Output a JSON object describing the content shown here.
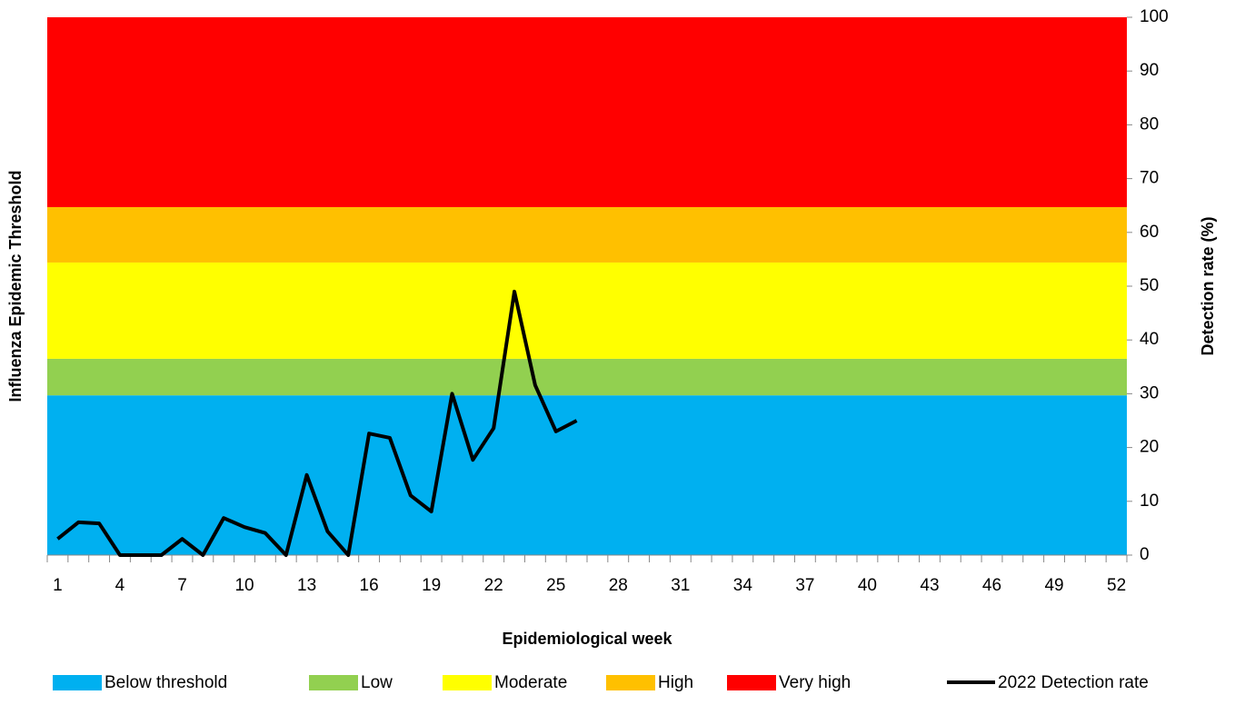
{
  "chart_data": {
    "type": "line",
    "x_label": "Epidemiological week",
    "y_label": "Influenza Epidemic Threshold",
    "y2_label": "Detection rate (%)",
    "categories": [
      1,
      null,
      null,
      4,
      null,
      null,
      7,
      null,
      null,
      10,
      null,
      null,
      13,
      null,
      null,
      16,
      null,
      null,
      19,
      null,
      null,
      22,
      null,
      null,
      25,
      null,
      null,
      28,
      null,
      null,
      31,
      null,
      null,
      34,
      null,
      null,
      37,
      null,
      null,
      40,
      null,
      null,
      43,
      null,
      null,
      46,
      null,
      null,
      49,
      null,
      null,
      52
    ],
    "bands": [
      {
        "name": "Below threshold",
        "color": "#00b0f0",
        "value": 29.7
      },
      {
        "name": "Low",
        "color": "#92d050",
        "value": 6.8
      },
      {
        "name": "Moderate",
        "color": "#ffff00",
        "value": 17.9
      },
      {
        "name": "High",
        "color": "#ffc000",
        "value": 10.3
      },
      {
        "name": "Very high",
        "color": "#ff0000",
        "value": 35.3
      }
    ],
    "series": [
      {
        "name": "2022 Detection rate",
        "color": "#000000",
        "values": [
          3,
          6.1,
          5.9,
          0,
          0,
          0,
          3,
          0,
          6.9,
          5.2,
          4.1,
          0,
          14.9,
          4.4,
          0,
          22.6,
          21.8,
          11.1,
          8.1,
          30,
          17.7,
          23.6,
          49,
          31.6,
          23,
          25,
          null,
          null,
          null,
          null,
          null,
          null,
          null,
          null,
          null,
          null,
          null,
          null,
          null,
          null,
          null,
          null,
          null,
          null,
          null,
          null,
          null,
          null,
          null,
          null,
          null,
          null
        ]
      }
    ],
    "ylim": [
      0,
      100
    ],
    "yticks": [
      0,
      10,
      20,
      30,
      40,
      50,
      60,
      70,
      80,
      90,
      100
    ]
  }
}
